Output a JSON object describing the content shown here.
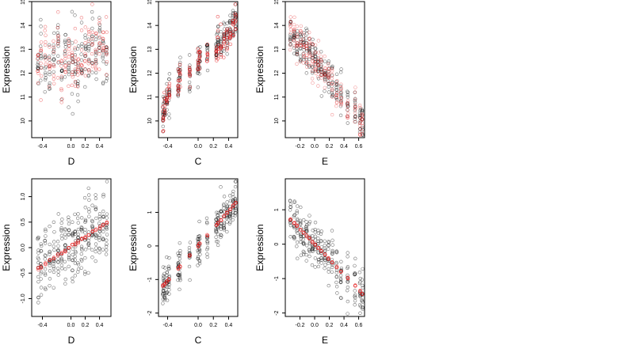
{
  "chart_data": [
    {
      "type": "scatter",
      "title": "",
      "xlabel": "D",
      "ylabel": "Expression",
      "xlim": [
        -0.55,
        0.56
      ],
      "ylim": [
        9.3,
        15.0
      ],
      "xticks": [
        -0.4,
        0.0,
        0.2,
        0.4
      ],
      "xtick_labels": [
        "-0.4",
        "0.0",
        "0.2",
        "0.4"
      ],
      "yticks": [
        10,
        11,
        12,
        13,
        14,
        15
      ],
      "ytick_labels": [
        "10",
        "11",
        "12",
        "13",
        "14",
        "15"
      ],
      "x_levels": [
        -0.46,
        -0.42,
        -0.36,
        -0.3,
        -0.24,
        -0.18,
        -0.13,
        -0.08,
        -0.03,
        0.02,
        0.06,
        0.1,
        0.15,
        0.2,
        0.25,
        0.3,
        0.35,
        0.4,
        0.45,
        0.5
      ],
      "y_center": [
        12.3,
        13.0,
        12.8,
        12.2,
        12.6,
        13.1,
        12.0,
        12.7,
        12.3,
        12.5,
        12.9,
        12.0,
        13.0,
        12.6,
        12.8,
        13.2,
        12.5,
        13.3,
        12.9,
        13.0
      ],
      "y_spread": 1.4,
      "series": [
        {
          "color": "#000000",
          "alpha": 0.55,
          "points_per_level": 10
        },
        {
          "color": "#e41a1c",
          "alpha": 0.55,
          "points_per_level": 8
        }
      ]
    },
    {
      "type": "scatter",
      "title": "",
      "xlabel": "C",
      "ylabel": "Expression",
      "xlim": [
        -0.52,
        0.52
      ],
      "ylim": [
        9.3,
        15.0
      ],
      "xticks": [
        -0.4,
        0.0,
        0.2,
        0.4
      ],
      "xtick_labels": [
        "-0.4",
        "0.0",
        "0.2",
        "0.4"
      ],
      "yticks": [
        10,
        11,
        12,
        13,
        14,
        15
      ],
      "ytick_labels": [
        "10",
        "11",
        "12",
        "13",
        "14",
        "15"
      ],
      "x_levels": [
        -0.46,
        -0.44,
        -0.41,
        -0.38,
        -0.26,
        -0.24,
        -0.11,
        0.0,
        0.02,
        0.12,
        0.24,
        0.26,
        0.3,
        0.34,
        0.38,
        0.42,
        0.46,
        0.49
      ],
      "y_center": [
        10.1,
        10.6,
        11.0,
        11.2,
        11.6,
        11.9,
        12.0,
        12.4,
        12.6,
        12.8,
        13.0,
        13.4,
        13.2,
        13.5,
        13.6,
        13.8,
        14.0,
        14.2
      ],
      "y_spread": 0.8,
      "series": [
        {
          "color": "#000000",
          "alpha": 0.55,
          "points_per_level": 14
        },
        {
          "color": "#e41a1c",
          "alpha": 0.75,
          "points_per_level": 8
        }
      ]
    },
    {
      "type": "scatter",
      "title": "",
      "xlabel": "E",
      "ylabel": "Expression",
      "xlim": [
        -0.4,
        0.68
      ],
      "ylim": [
        9.3,
        15.0
      ],
      "xticks": [
        -0.2,
        0.0,
        0.2,
        0.4,
        0.6
      ],
      "xtick_labels": [
        "-0.2",
        "0.0",
        "0.2",
        "0.4",
        "0.6"
      ],
      "yticks": [
        10,
        11,
        12,
        13,
        14,
        15
      ],
      "ytick_labels": [
        "10",
        "11",
        "12",
        "13",
        "14",
        "15"
      ],
      "x_levels": [
        -0.33,
        -0.28,
        -0.24,
        -0.19,
        -0.15,
        -0.11,
        -0.07,
        -0.03,
        0.01,
        0.05,
        0.09,
        0.14,
        0.19,
        0.24,
        0.3,
        0.36,
        0.45,
        0.55,
        0.62,
        0.65
      ],
      "y_center": [
        13.6,
        13.5,
        13.4,
        13.3,
        13.1,
        12.9,
        12.9,
        12.7,
        12.6,
        12.4,
        12.2,
        12.0,
        11.8,
        11.6,
        11.3,
        11.1,
        10.8,
        10.5,
        10.1,
        9.9
      ],
      "y_spread": 0.9,
      "series": [
        {
          "color": "#000000",
          "alpha": 0.55,
          "points_per_level": 12
        },
        {
          "color": "#e41a1c",
          "alpha": 0.45,
          "points_per_level": 10
        }
      ]
    },
    {
      "type": "scatter",
      "title": "",
      "xlabel": "D",
      "ylabel": "Expression",
      "xlim": [
        -0.55,
        0.56
      ],
      "ylim": [
        -1.35,
        1.35
      ],
      "xticks": [
        -0.4,
        0.0,
        0.2,
        0.4
      ],
      "xtick_labels": [
        "-0.4",
        "0.0",
        "0.2",
        "0.4"
      ],
      "yticks": [
        -1.0,
        -0.5,
        0.0,
        0.5,
        1.0
      ],
      "ytick_labels": [
        "-1.0",
        "-0.5",
        "0.0",
        "0.5",
        "1.0"
      ],
      "x_levels": [
        -0.46,
        -0.42,
        -0.36,
        -0.3,
        -0.24,
        -0.18,
        -0.13,
        -0.08,
        -0.03,
        0.02,
        0.06,
        0.1,
        0.15,
        0.2,
        0.25,
        0.3,
        0.35,
        0.4,
        0.45,
        0.5
      ],
      "fit_slope": 0.95,
      "fit_intercept": 0.02,
      "y_spread": 0.9,
      "series": [
        {
          "color": "#000000",
          "alpha": 0.55,
          "points_per_level": 14
        },
        {
          "color": "#e41a1c",
          "alpha": 0.8,
          "points_per_level": 3,
          "on_fit_line": true
        }
      ]
    },
    {
      "type": "scatter",
      "title": "",
      "xlabel": "C",
      "ylabel": "Expression",
      "xlim": [
        -0.52,
        0.52
      ],
      "ylim": [
        -2.1,
        2.0
      ],
      "xticks": [
        -0.4,
        0.0,
        0.2,
        0.4
      ],
      "xtick_labels": [
        "-0.4",
        "0.0",
        "0.2",
        "0.4"
      ],
      "yticks": [
        -2,
        -1,
        0,
        1
      ],
      "ytick_labels": [
        "-2",
        "-1",
        "0",
        "1"
      ],
      "x_levels": [
        -0.46,
        -0.44,
        -0.41,
        -0.38,
        -0.26,
        -0.24,
        -0.11,
        0.0,
        0.02,
        0.12,
        0.24,
        0.26,
        0.3,
        0.34,
        0.38,
        0.42,
        0.46,
        0.49
      ],
      "fit_slope": 2.6,
      "fit_intercept": 0.0,
      "y_spread": 0.8,
      "series": [
        {
          "color": "#000000",
          "alpha": 0.55,
          "points_per_level": 14
        },
        {
          "color": "#e41a1c",
          "alpha": 0.8,
          "points_per_level": 3,
          "on_fit_line": true
        }
      ]
    },
    {
      "type": "scatter",
      "title": "",
      "xlabel": "E",
      "ylabel": "Expression",
      "xlim": [
        -0.4,
        0.68
      ],
      "ylim": [
        -2.1,
        1.9
      ],
      "xticks": [
        -0.2,
        0.0,
        0.2,
        0.4,
        0.6
      ],
      "xtick_labels": [
        "-0.2",
        "0.0",
        "0.2",
        "0.4",
        "0.6"
      ],
      "yticks": [
        -2,
        -1,
        0,
        1
      ],
      "ytick_labels": [
        "-2",
        "-1",
        "0",
        "1"
      ],
      "x_levels": [
        -0.33,
        -0.28,
        -0.24,
        -0.19,
        -0.15,
        -0.11,
        -0.07,
        -0.03,
        0.01,
        0.05,
        0.09,
        0.14,
        0.19,
        0.24,
        0.3,
        0.36,
        0.45,
        0.55,
        0.62,
        0.65
      ],
      "fit_slope": -2.2,
      "fit_intercept": 0.0,
      "y_spread": 0.9,
      "series": [
        {
          "color": "#000000",
          "alpha": 0.55,
          "points_per_level": 13
        },
        {
          "color": "#e41a1c",
          "alpha": 0.8,
          "points_per_level": 3,
          "on_fit_line": true
        }
      ]
    }
  ]
}
